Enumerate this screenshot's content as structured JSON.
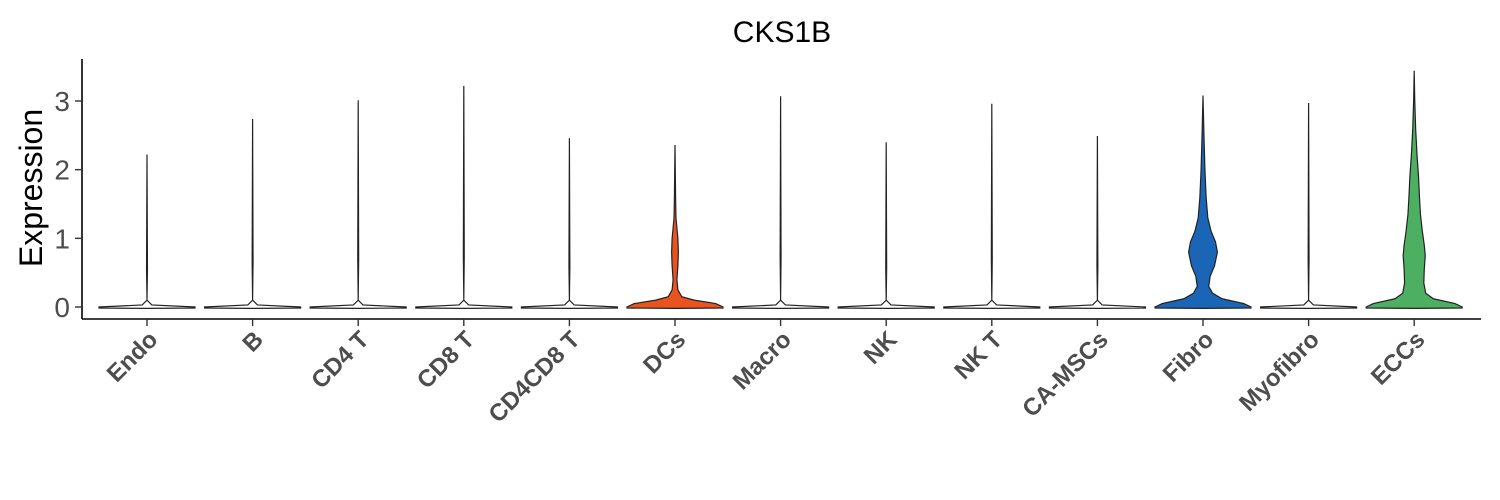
{
  "chart_data": {
    "type": "violin",
    "title": "CKS1B",
    "xlabel": "",
    "ylabel": "Expression",
    "ylim": [
      -0.2,
      3.6
    ],
    "yticks": [
      0,
      1,
      2,
      3
    ],
    "grid": false,
    "legend": "none",
    "categories": [
      "Endo",
      "B",
      "CD4 T",
      "CD8 T",
      "CD4CD8 T",
      "DCs",
      "Macro",
      "NK",
      "NK T",
      "CA-MSCs",
      "Fibro",
      "Myofibro",
      "ECCs"
    ],
    "max_values": [
      2.22,
      2.74,
      3.01,
      3.22,
      2.46,
      2.36,
      3.07,
      2.4,
      2.96,
      2.49,
      3.08,
      2.97,
      3.44
    ],
    "fill_colors": [
      "#ffffff",
      "#ffffff",
      "#ffffff",
      "#ffffff",
      "#ffffff",
      "#e8531f",
      "#ffffff",
      "#ffffff",
      "#ffffff",
      "#ffffff",
      "#1a65b5",
      "#ffffff",
      "#4daf62"
    ],
    "density_profiles": [
      [
        [
          0,
          1.0
        ],
        [
          0.03,
          0.1
        ],
        [
          0.1,
          0.0
        ]
      ],
      [
        [
          0,
          1.0
        ],
        [
          0.03,
          0.1
        ],
        [
          0.1,
          0.0
        ]
      ],
      [
        [
          0,
          1.0
        ],
        [
          0.03,
          0.1
        ],
        [
          0.1,
          0.0
        ]
      ],
      [
        [
          0,
          1.0
        ],
        [
          0.03,
          0.1
        ],
        [
          0.1,
          0.0
        ]
      ],
      [
        [
          0,
          1.0
        ],
        [
          0.03,
          0.1
        ],
        [
          0.1,
          0.0
        ]
      ],
      [
        [
          0,
          1.0
        ],
        [
          0.05,
          0.85
        ],
        [
          0.1,
          0.4
        ],
        [
          0.15,
          0.14
        ],
        [
          0.25,
          0.06
        ],
        [
          0.4,
          0.04
        ],
        [
          0.6,
          0.06
        ],
        [
          0.8,
          0.07
        ],
        [
          1.0,
          0.06
        ],
        [
          1.15,
          0.04
        ],
        [
          1.3,
          0.02
        ],
        [
          1.6,
          0.012
        ],
        [
          2.0,
          0.006
        ],
        [
          2.36,
          0.0
        ]
      ],
      [
        [
          0,
          1.0
        ],
        [
          0.03,
          0.1
        ],
        [
          0.1,
          0.0
        ]
      ],
      [
        [
          0,
          1.0
        ],
        [
          0.03,
          0.1
        ],
        [
          0.1,
          0.0
        ]
      ],
      [
        [
          0,
          1.0
        ],
        [
          0.03,
          0.1
        ],
        [
          0.1,
          0.0
        ]
      ],
      [
        [
          0,
          1.0
        ],
        [
          0.03,
          0.1
        ],
        [
          0.1,
          0.0
        ]
      ],
      [
        [
          0,
          1.0
        ],
        [
          0.05,
          0.85
        ],
        [
          0.12,
          0.4
        ],
        [
          0.2,
          0.2
        ],
        [
          0.3,
          0.12
        ],
        [
          0.45,
          0.15
        ],
        [
          0.6,
          0.24
        ],
        [
          0.8,
          0.3
        ],
        [
          0.95,
          0.26
        ],
        [
          1.1,
          0.17
        ],
        [
          1.3,
          0.1
        ],
        [
          1.6,
          0.065
        ],
        [
          2.0,
          0.04
        ],
        [
          2.5,
          0.02
        ],
        [
          3.08,
          0.0
        ]
      ],
      [
        [
          0,
          1.0
        ],
        [
          0.03,
          0.1
        ],
        [
          0.1,
          0.0
        ]
      ],
      [
        [
          0,
          1.0
        ],
        [
          0.05,
          0.85
        ],
        [
          0.12,
          0.4
        ],
        [
          0.2,
          0.24
        ],
        [
          0.35,
          0.2
        ],
        [
          0.55,
          0.21
        ],
        [
          0.75,
          0.23
        ],
        [
          0.9,
          0.21
        ],
        [
          1.1,
          0.17
        ],
        [
          1.35,
          0.13
        ],
        [
          1.6,
          0.11
        ],
        [
          1.9,
          0.09
        ],
        [
          2.2,
          0.06
        ],
        [
          2.6,
          0.03
        ],
        [
          3.0,
          0.012
        ],
        [
          3.44,
          0.0
        ]
      ]
    ]
  }
}
